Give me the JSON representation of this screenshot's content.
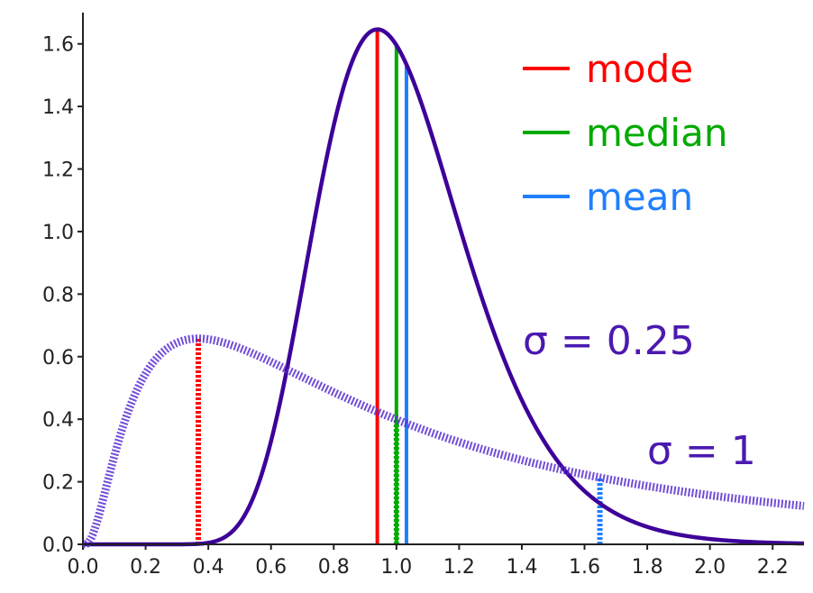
{
  "chart_data": {
    "type": "line",
    "title": "",
    "xlabel": "",
    "ylabel": "",
    "xlim": [
      0,
      2.3
    ],
    "ylim": [
      0,
      1.7
    ],
    "x_ticks": [
      "0.0",
      "0.2",
      "0.4",
      "0.6",
      "0.8",
      "1.0",
      "1.2",
      "1.4",
      "1.6",
      "1.8",
      "2.0",
      "2.2"
    ],
    "y_ticks": [
      "0.0",
      "0.2",
      "0.4",
      "0.6",
      "0.8",
      "1.0",
      "1.2",
      "1.4",
      "1.6"
    ],
    "grid": false,
    "legend_position": "top-right",
    "legend": [
      {
        "label": "mode",
        "color": "#ff0000"
      },
      {
        "label": "median",
        "color": "#00aa00"
      },
      {
        "label": "mean",
        "color": "#1f7fff"
      }
    ],
    "series": [
      {
        "name": "σ = 0.25",
        "sigma": 0.25,
        "style": "solid",
        "color": "#3d0099",
        "mode": 0.939,
        "median": 1.0,
        "mean": 1.032,
        "peak_density": 1.64
      },
      {
        "name": "σ = 1",
        "sigma": 1,
        "style": "dotted",
        "color": "#5a2fd0",
        "mode": 0.368,
        "median": 1.0,
        "mean": 1.649,
        "peak_density": 0.66
      }
    ]
  }
}
